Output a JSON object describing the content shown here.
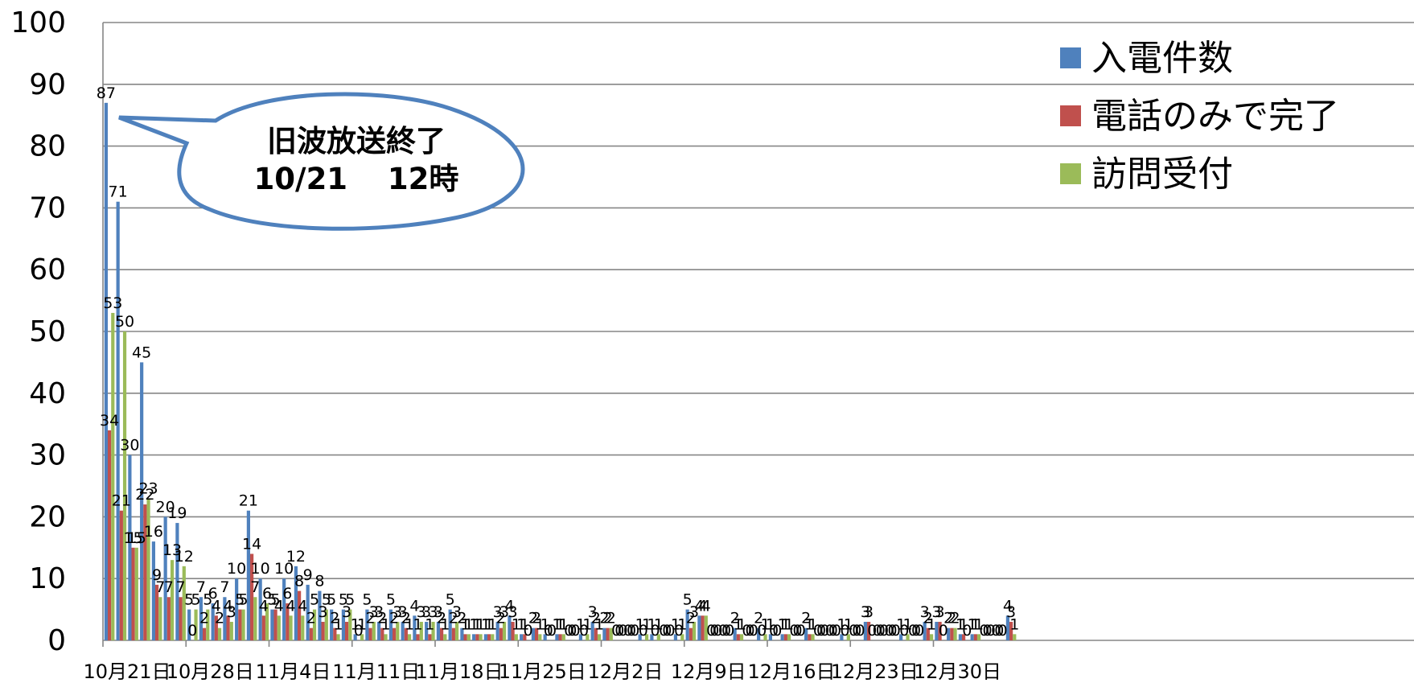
{
  "chart_data": {
    "type": "bar",
    "ylim": [
      0,
      100
    ],
    "yticks": [
      0,
      10,
      20,
      30,
      40,
      50,
      60,
      70,
      80,
      90,
      100
    ],
    "grid": true,
    "legend_position": "top-right",
    "x_tick_labels": [
      "10月21日",
      "10月28日",
      "11月4日",
      "11月11日",
      "11月18日",
      "11月25日",
      "12月2日",
      "12月9日",
      "12月16日",
      "12月23日",
      "12月30日"
    ],
    "x_tick_day_index": [
      0,
      7,
      14,
      21,
      28,
      35,
      42,
      49,
      56,
      63,
      70
    ],
    "num_days": 77,
    "series": [
      {
        "name": "入電件数",
        "color": "#4F81BD",
        "values": [
          87,
          71,
          30,
          45,
          16,
          20,
          19,
          5,
          7,
          6,
          7,
          10,
          21,
          10,
          5,
          10,
          12,
          9,
          8,
          5,
          5,
          1,
          5,
          3,
          5,
          3,
          4,
          3,
          3,
          5,
          2,
          1,
          1,
          3,
          4,
          1,
          2,
          1,
          1,
          0,
          1,
          3,
          2,
          0,
          0,
          1,
          1,
          0,
          1,
          5,
          4,
          0,
          0,
          2,
          0,
          2,
          1,
          1,
          0,
          2,
          0,
          0,
          1,
          0,
          3,
          0,
          0,
          1,
          0,
          3,
          3,
          2,
          1,
          1,
          0,
          0,
          4
        ]
      },
      {
        "name": "電話のみで完了",
        "color": "#C0504D",
        "values": [
          34,
          21,
          15,
          22,
          9,
          7,
          7,
          0,
          2,
          4,
          4,
          5,
          14,
          4,
          5,
          6,
          8,
          2,
          3,
          2,
          3,
          0,
          2,
          2,
          2,
          2,
          1,
          1,
          2,
          2,
          1,
          1,
          1,
          2,
          3,
          1,
          2,
          0,
          1,
          0,
          0,
          2,
          2,
          0,
          0,
          0,
          0,
          0,
          0,
          2,
          4,
          0,
          0,
          1,
          0,
          0,
          0,
          1,
          0,
          1,
          0,
          0,
          0,
          0,
          3,
          0,
          0,
          0,
          0,
          2,
          3,
          2,
          1,
          1,
          0,
          0,
          3
        ]
      },
      {
        "name": "訪問受付",
        "color": "#9BBB59",
        "values": [
          53,
          50,
          15,
          23,
          7,
          13,
          12,
          5,
          5,
          2,
          3,
          5,
          7,
          6,
          4,
          4,
          4,
          5,
          5,
          1,
          5,
          1,
          3,
          1,
          3,
          1,
          3,
          3,
          1,
          3,
          1,
          1,
          1,
          3,
          1,
          0,
          1,
          0,
          1,
          0,
          1,
          1,
          2,
          0,
          0,
          1,
          1,
          0,
          1,
          3,
          4,
          0,
          0,
          1,
          0,
          1,
          0,
          1,
          0,
          1,
          0,
          0,
          1,
          0,
          0,
          0,
          0,
          1,
          0,
          1,
          0,
          2,
          0,
          1,
          0,
          0,
          1
        ]
      }
    ],
    "annotation": {
      "line1": "旧波放送終了",
      "line2": "10/21　 12時"
    }
  }
}
